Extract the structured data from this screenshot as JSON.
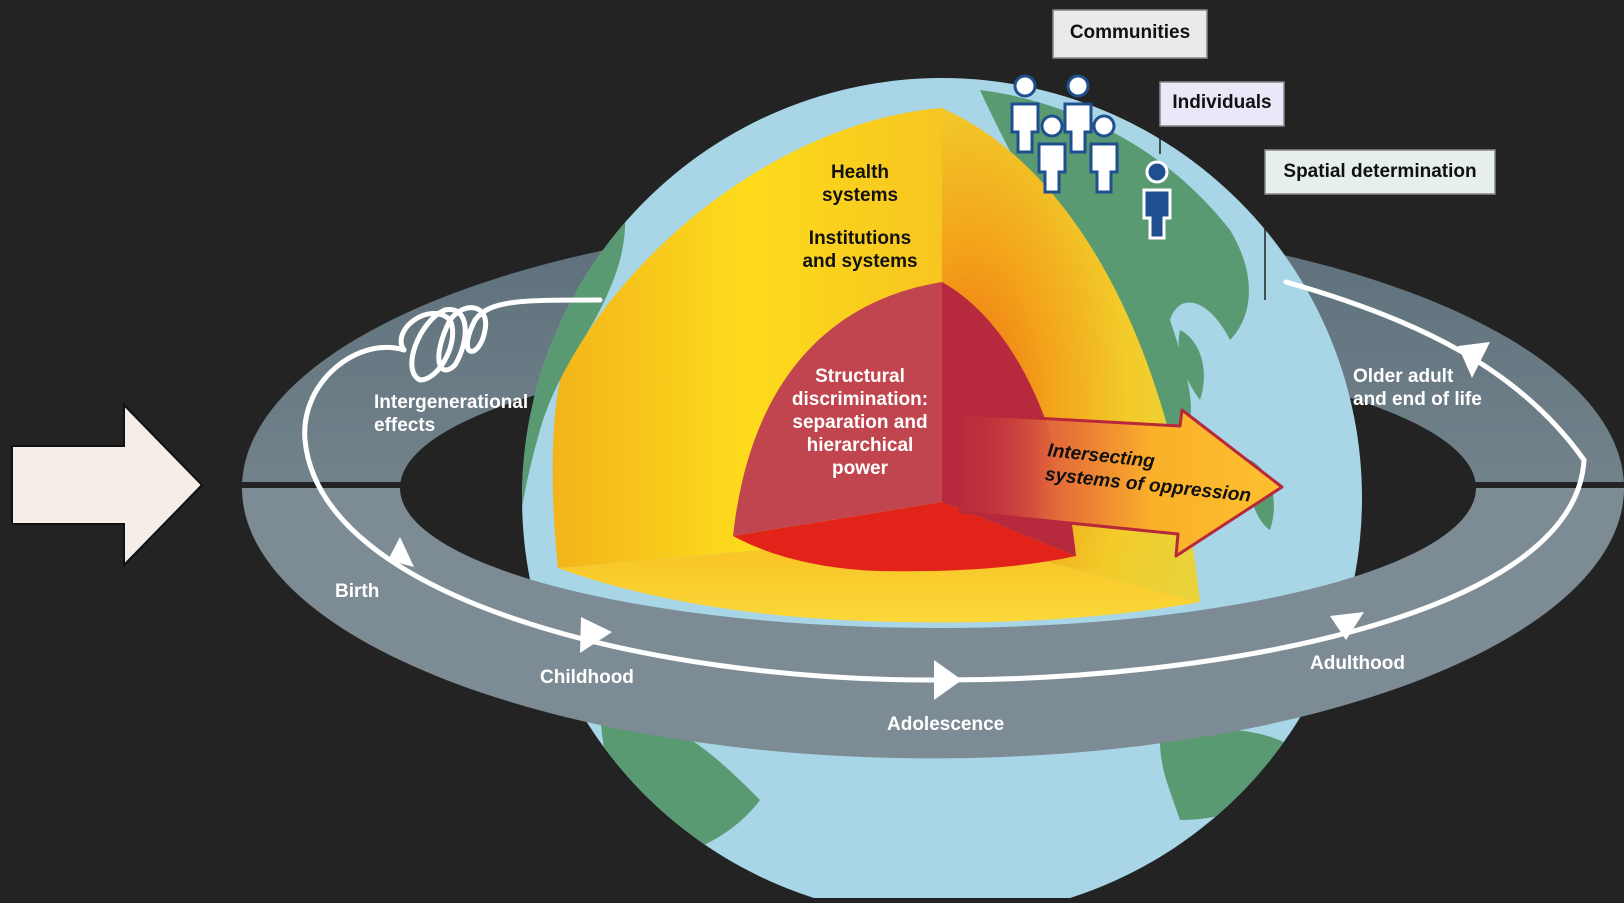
{
  "tags": {
    "communities": "Communities",
    "individuals": "Individuals",
    "spatial": "Spatial determination"
  },
  "core": {
    "health_line1": "Health",
    "health_line2": "systems",
    "inst_line1": "Institutions",
    "inst_line2": "and systems",
    "struct_line1": "Structural",
    "struct_line2": "discrimination:",
    "struct_line3": "separation and",
    "struct_line4": "hierarchical",
    "struct_line5": "power"
  },
  "arrow": {
    "line1": "Intersecting",
    "line2": "systems of oppression"
  },
  "life_course": {
    "intergen_line1": "Intergenerational",
    "intergen_line2": "effects",
    "birth": "Birth",
    "childhood": "Childhood",
    "adolescence": "Adolescence",
    "adulthood": "Adulthood",
    "older_line1": "Older adult",
    "older_line2": "and end of life"
  },
  "colors": {
    "background": "#232323",
    "ocean": "#a8d6e6",
    "land": "#5a9a72",
    "ring": "#7d8c94",
    "core_red": "#c0303c",
    "mantle_yellow": "#f2c01a",
    "entry_arrow": "#f4ede8",
    "individual": "#1f4f8f",
    "community": "#ffffff"
  }
}
